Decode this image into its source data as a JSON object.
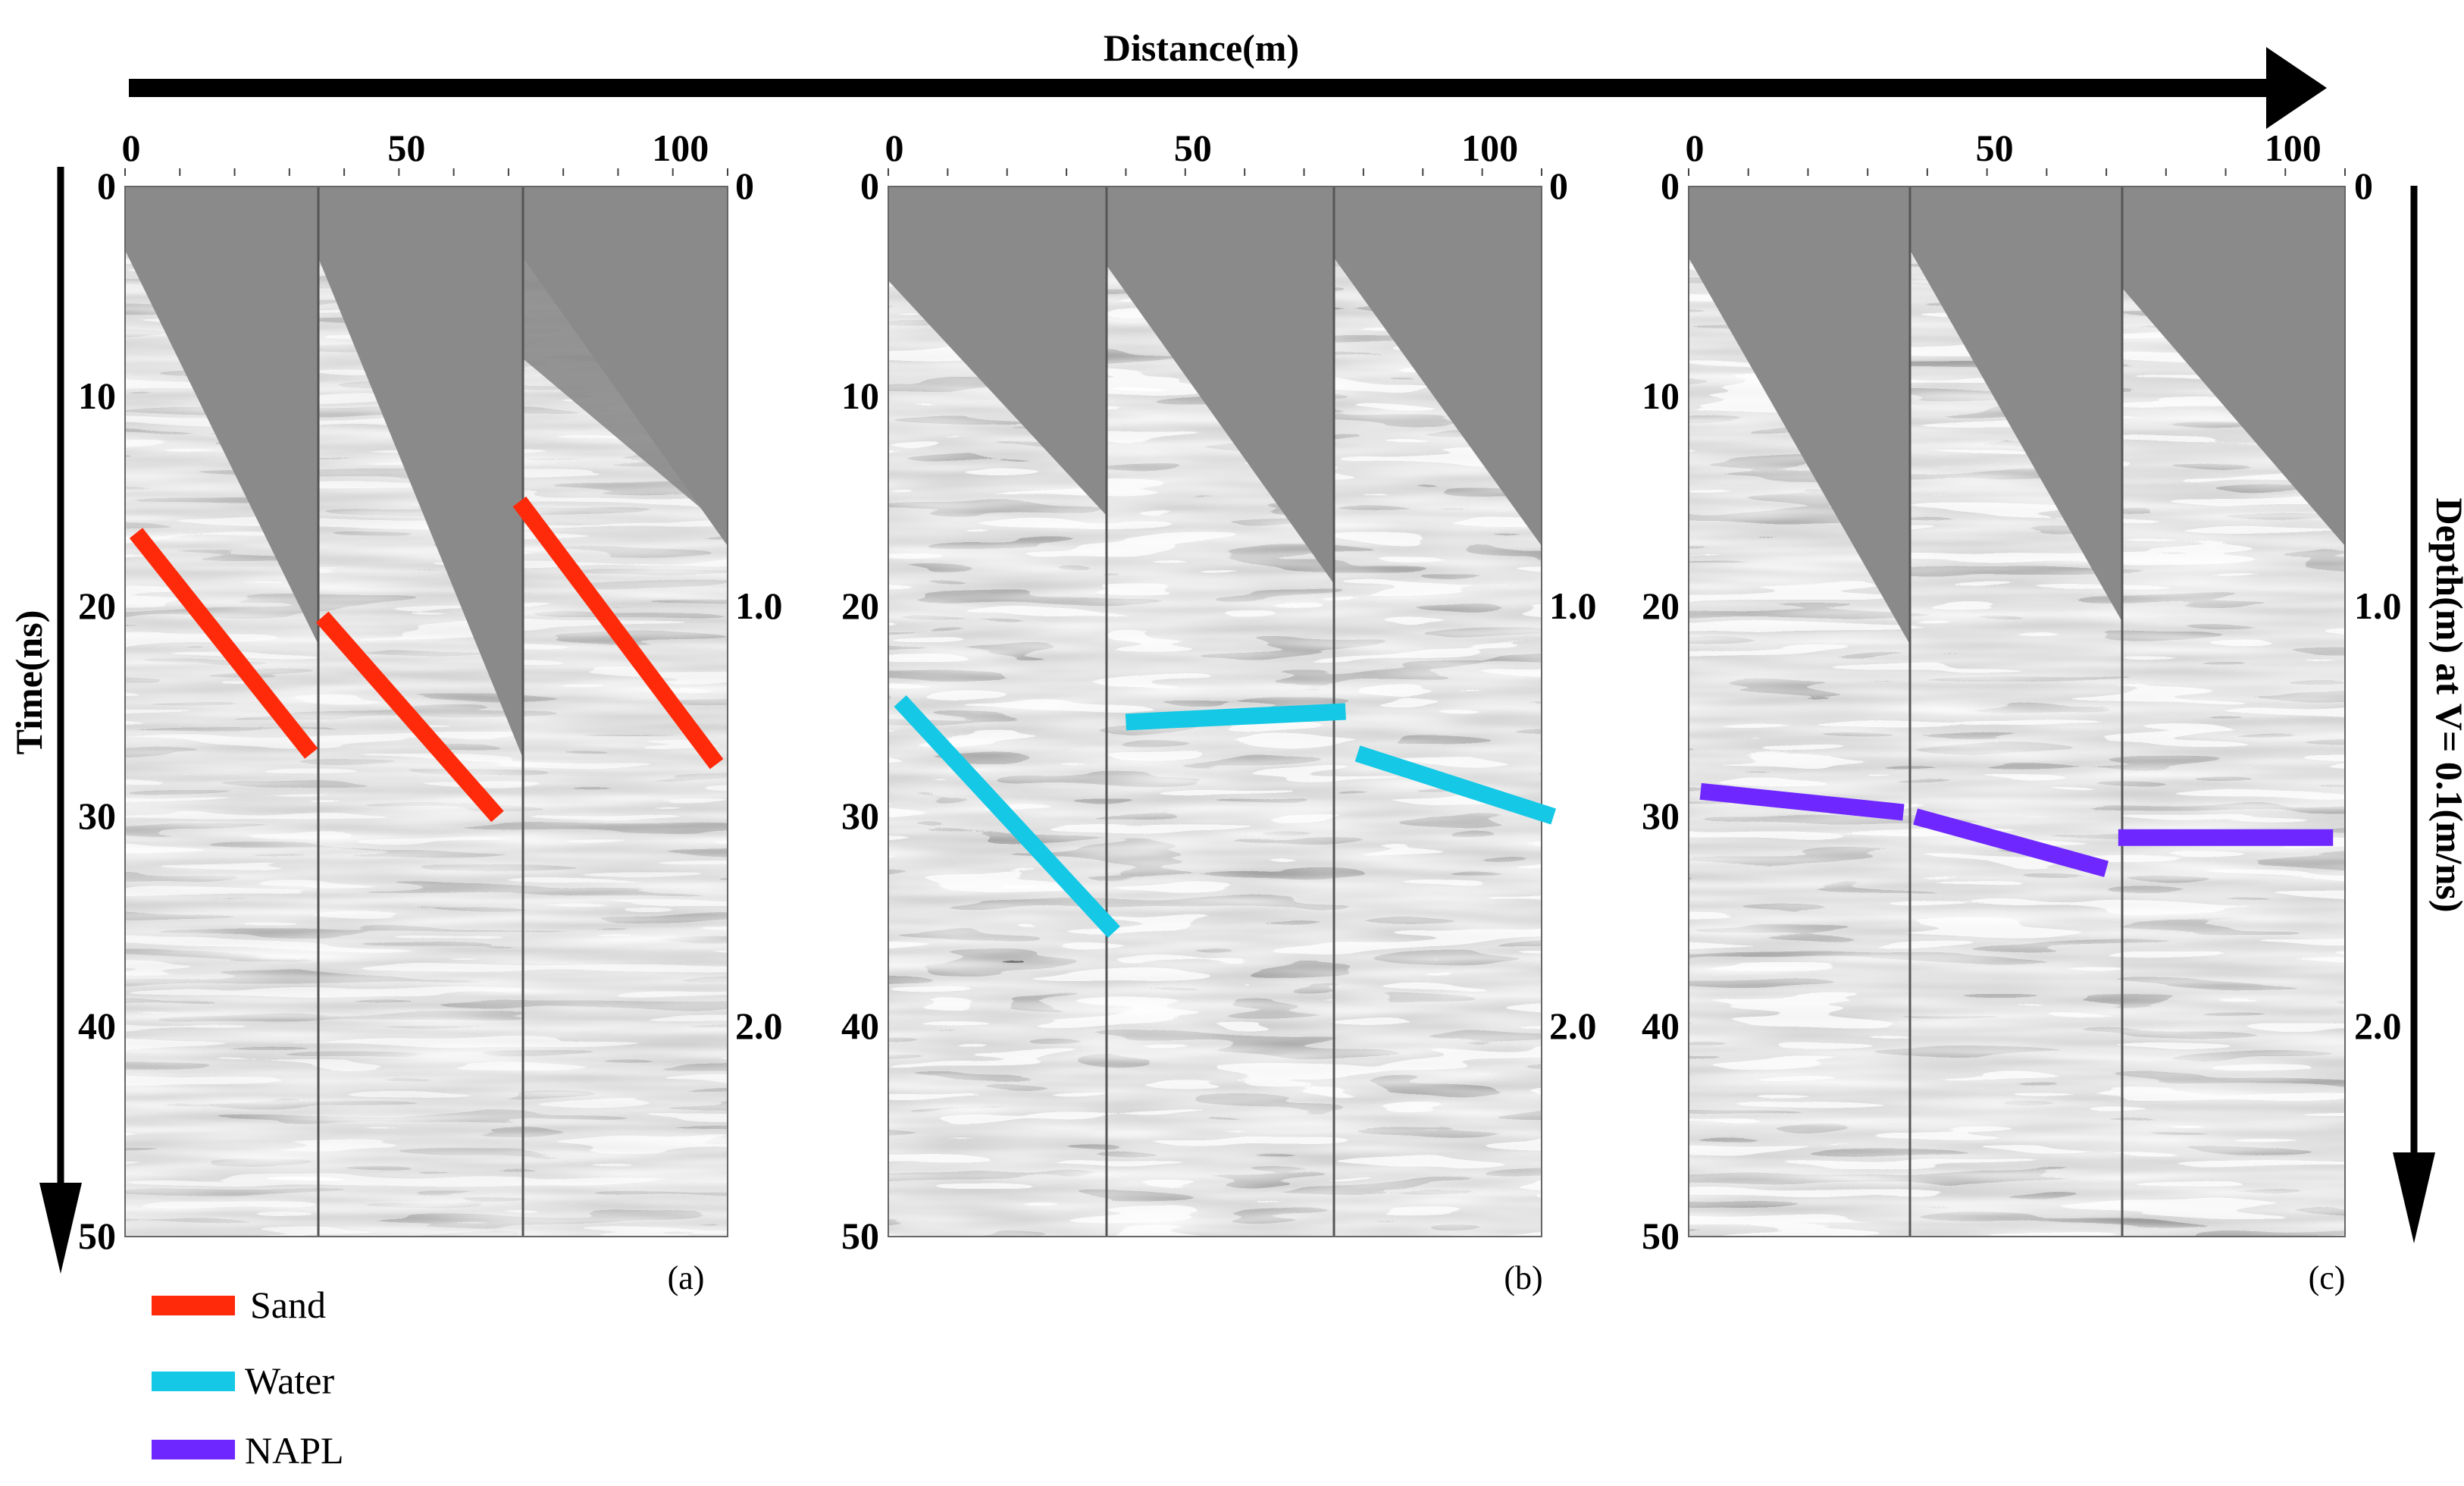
{
  "figure": {
    "x_axis_title": "Distance(m)",
    "y_axis_left_title": "Time(ns)",
    "y_axis_right_title": "Depth(m)  at V= 0.1(m/ns)",
    "distance_ticks": [
      "0",
      "50",
      "100"
    ],
    "time_ticks": [
      "0",
      "10",
      "20",
      "30",
      "40",
      "50"
    ],
    "depth_ticks_ab": [
      "0",
      "1.0",
      "2.0"
    ],
    "depth_ticks_c": [
      "0",
      "1.0",
      "2.0"
    ],
    "panels": [
      {
        "tag": "(a)",
        "material": "Sand",
        "color": "#ff2a0a"
      },
      {
        "tag": "(b)",
        "material": "Water",
        "color": "#14c8e6"
      },
      {
        "tag": "(c)",
        "material": "NAPL",
        "color": "#6e28ff"
      }
    ]
  },
  "legend": [
    {
      "label": "Sand",
      "color": "#ff2a0a"
    },
    {
      "label": "Water",
      "color": "#14c8e6"
    },
    {
      "label": "NAPL",
      "color": "#6e28ff"
    }
  ],
  "chart_data": {
    "type": "other",
    "description_units": {
      "x": "Distance(m)",
      "y": "Time(ns)"
    },
    "x_range": [
      0,
      110
    ],
    "y_range": [
      0,
      50
    ],
    "panels": [
      {
        "tag": "(a)",
        "interpretation": "Sand",
        "segments": [
          {
            "x": [
              2,
              34
            ],
            "y": [
              16.5,
              27
            ]
          },
          {
            "x": [
              36,
              68
            ],
            "y": [
              20.5,
              30
            ]
          },
          {
            "x": [
              72,
              108
            ],
            "y": [
              15,
              27.5
            ]
          }
        ]
      },
      {
        "tag": "(b)",
        "interpretation": "Water",
        "segments": [
          {
            "x": [
              2,
              38
            ],
            "y": [
              24.5,
              35.5
            ]
          },
          {
            "x": [
              40,
              77
            ],
            "y": [
              25.5,
              25
            ]
          },
          {
            "x": [
              79,
              112
            ],
            "y": [
              27,
              30
            ]
          }
        ]
      },
      {
        "tag": "(c)",
        "interpretation": "NAPL",
        "segments": [
          {
            "x": [
              2,
              36
            ],
            "y": [
              28.8,
              29.8
            ]
          },
          {
            "x": [
              38,
              70
            ],
            "y": [
              30,
              32.5
            ]
          },
          {
            "x": [
              72,
              108
            ],
            "y": [
              31,
              31
            ]
          }
        ]
      }
    ]
  }
}
